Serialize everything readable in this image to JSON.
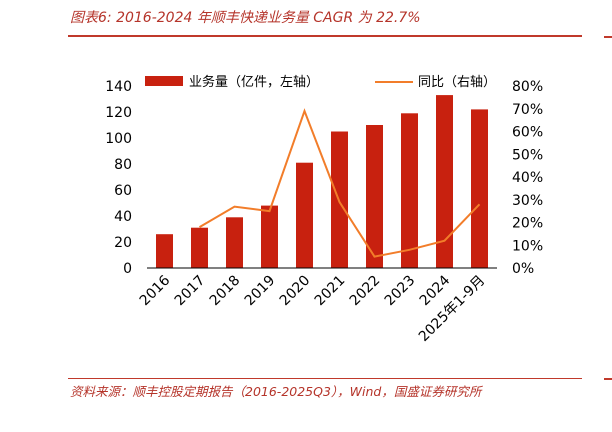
{
  "header": {
    "title": "图表6:  2016-2024 年顺丰快递业务量 CAGR 为 22.7%"
  },
  "footer": {
    "source": "资料来源：顺丰控股定期报告（2016-2025Q3），Wind，国盛证券研究所"
  },
  "colors": {
    "bar": "#c8210f",
    "line": "#f27d2a",
    "accent": "#c0392b",
    "text": "#000000"
  },
  "chart_data": {
    "type": "bar",
    "categories": [
      "2016",
      "2017",
      "2018",
      "2019",
      "2020",
      "2021",
      "2022",
      "2023",
      "2024",
      "2025年1-9月"
    ],
    "series": [
      {
        "name": "业务量（亿件，左轴）",
        "type": "bar",
        "axis": "left",
        "values": [
          26,
          31,
          39,
          48,
          81,
          105,
          110,
          119,
          133,
          122
        ]
      },
      {
        "name": "同比（右轴）",
        "type": "line",
        "axis": "right",
        "values": [
          null,
          18,
          27,
          25,
          69,
          29,
          5,
          8,
          12,
          28
        ]
      }
    ],
    "y_left": {
      "ticks": [
        "0",
        "20",
        "40",
        "60",
        "80",
        "100",
        "120",
        "140"
      ],
      "ylim": [
        0,
        140
      ]
    },
    "y_right": {
      "ticks": [
        "0%",
        "10%",
        "20%",
        "30%",
        "40%",
        "50%",
        "60%",
        "70%",
        "80%"
      ],
      "ylim": [
        0,
        80
      ]
    },
    "legend": {
      "placement": "top"
    },
    "grid": false
  }
}
